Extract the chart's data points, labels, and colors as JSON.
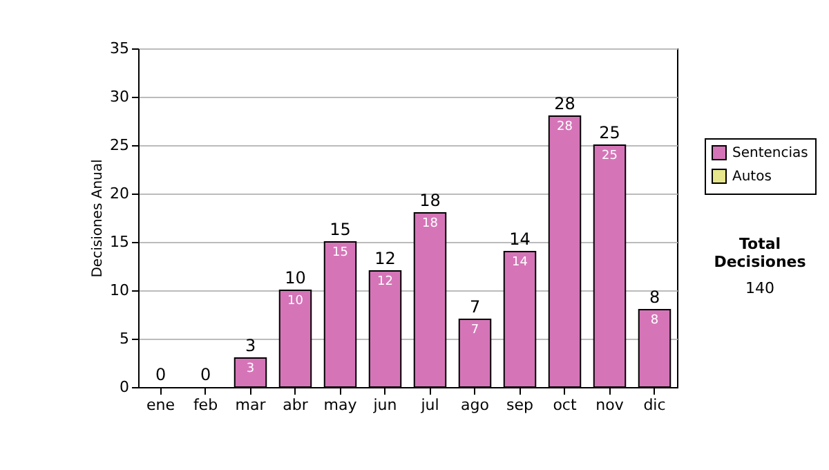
{
  "chart_data": {
    "type": "bar",
    "stacked": true,
    "categories": [
      "ene",
      "feb",
      "mar",
      "abr",
      "may",
      "jun",
      "jul",
      "ago",
      "sep",
      "oct",
      "nov",
      "dic"
    ],
    "series": [
      {
        "name": "Sentencias",
        "color": "#d575b8",
        "values": [
          0,
          0,
          3,
          10,
          15,
          12,
          18,
          7,
          14,
          28,
          25,
          8
        ],
        "value_labels": [
          null,
          null,
          "3",
          "10",
          "15",
          "12",
          "18",
          "7",
          "14",
          "28",
          "25",
          "8"
        ]
      },
      {
        "name": "Autos",
        "color": "#e6e68c",
        "values": [
          0,
          0,
          0,
          0,
          0,
          0,
          0,
          0,
          0,
          0,
          0,
          0
        ]
      }
    ],
    "totals": [
      "0",
      "0",
      "3",
      "10",
      "15",
      "12",
      "18",
      "7",
      "14",
      "28",
      "25",
      "8"
    ],
    "ylabel": "Decisiones Anual",
    "ylim": [
      0,
      35
    ],
    "yticks": [
      0,
      5,
      10,
      15,
      20,
      25,
      30,
      35
    ],
    "grid": "y",
    "legend": "right",
    "annotations": [
      "Total Decisiones",
      "140"
    ]
  }
}
